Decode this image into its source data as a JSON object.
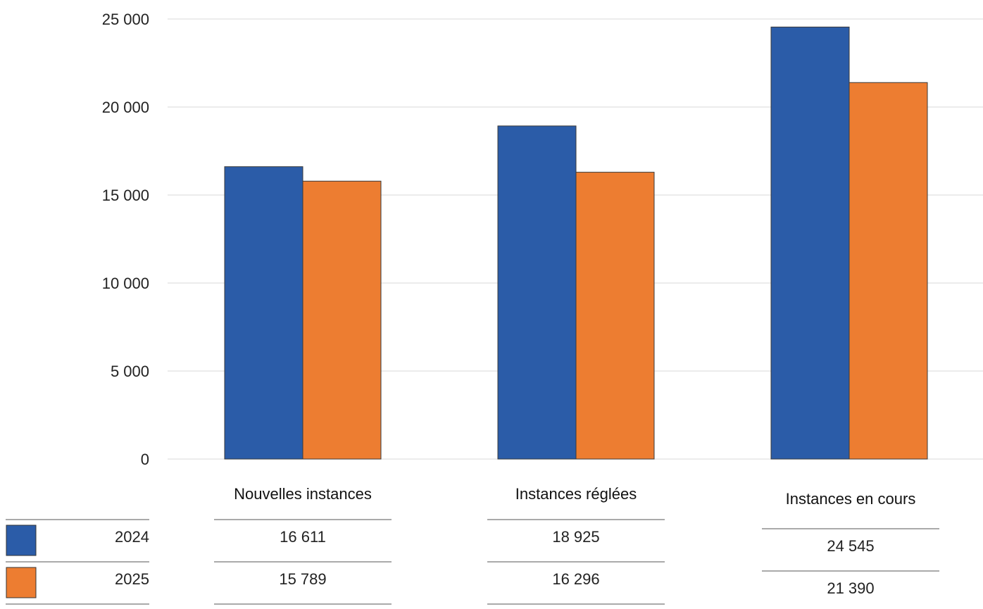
{
  "chart_data": {
    "type": "bar",
    "categories": [
      "Nouvelles instances",
      "Instances réglées",
      "Instances en cours"
    ],
    "series": [
      {
        "name": "2024",
        "values": [
          16611,
          18925,
          24545
        ],
        "color": "#2b5ca8"
      },
      {
        "name": "2025",
        "values": [
          15789,
          16296,
          21390
        ],
        "color": "#ed7d31"
      }
    ],
    "ylim": [
      0,
      25000
    ],
    "yticks": [
      0,
      5000,
      10000,
      15000,
      20000,
      25000
    ],
    "ytick_labels": [
      "0",
      "5 000",
      "10 000",
      "15 000",
      "20 000",
      "25 000"
    ],
    "table": {
      "rows": [
        {
          "label": "2024",
          "cells": [
            "16 611",
            "18 925",
            "24 545"
          ]
        },
        {
          "label": "2025",
          "cells": [
            "15 789",
            "16 296",
            "21 390"
          ]
        }
      ]
    },
    "grid": true,
    "legend": "bottom-table"
  }
}
